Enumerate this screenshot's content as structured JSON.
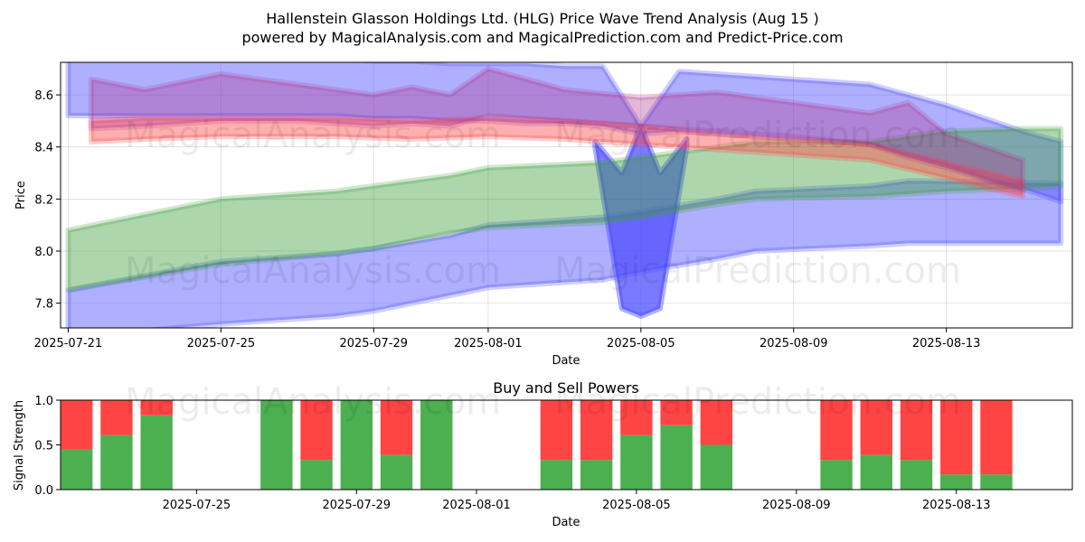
{
  "figure": {
    "title_line1": "Hallenstein Glasson Holdings Ltd. (HLG) Price Wave Trend Analysis (Aug 15 )",
    "title_line2": "powered by MagicalAnalysis.com and MagicalPrediction.com and Predict-Price.com",
    "watermark_left": "MagicalAnalysis.com",
    "watermark_right": "MagicalPrediction.com"
  },
  "colors": {
    "blue_band": "#4d4dff",
    "green_band": "#3c9e3c",
    "red_band": "#ff4d4d",
    "purple_band": "#b0308a",
    "buy": "#4caf50",
    "sell": "#ff4444"
  },
  "chart_data": [
    {
      "type": "area",
      "title": "",
      "xlabel": "Date",
      "ylabel": "Price",
      "x_ticks": [
        "2025-07-21",
        "2025-07-25",
        "2025-07-29",
        "2025-08-01",
        "2025-08-05",
        "2025-08-09",
        "2025-08-13"
      ],
      "y_ticks": [
        "7.8",
        "8.0",
        "8.2",
        "8.4",
        "8.6"
      ],
      "xlim": [
        "2025-07-20.8",
        "2025-08-16.3"
      ],
      "ylim": [
        7.705,
        8.725
      ],
      "grid": true,
      "series": [
        {
          "band": "blue-upper",
          "x": [
            "2025-07-21",
            "2025-07-25",
            "2025-07-28",
            "2025-07-29",
            "2025-07-30",
            "2025-07-31",
            "2025-08-01",
            "2025-08-02",
            "2025-08-03",
            "2025-08-04",
            "2025-08-05",
            "2025-08-06",
            "2025-08-07",
            "2025-08-08",
            "2025-08-10",
            "2025-08-11",
            "2025-08-12",
            "2025-08-13",
            "2025-08-14",
            "2025-08-15",
            "2025-08-16"
          ],
          "upper": [
            8.74,
            8.74,
            8.74,
            8.73,
            8.73,
            8.72,
            8.72,
            8.72,
            8.71,
            8.71,
            8.48,
            8.69,
            8.68,
            8.67,
            8.65,
            8.64,
            8.6,
            8.56,
            8.51,
            8.46,
            8.42
          ],
          "lower": [
            8.52,
            8.52,
            8.52,
            8.51,
            8.51,
            8.5,
            8.5,
            8.49,
            8.49,
            8.48,
            8.45,
            8.46,
            8.45,
            8.44,
            8.42,
            8.41,
            8.37,
            8.33,
            8.28,
            8.24,
            8.19
          ]
        },
        {
          "band": "blue-dip",
          "x": [
            "2025-08-03.8",
            "2025-08-04.5",
            "2025-08-05",
            "2025-08-05.5",
            "2025-08-06.2"
          ],
          "upper": [
            8.42,
            8.3,
            8.48,
            8.3,
            8.43
          ],
          "lower": [
            8.4,
            7.78,
            7.75,
            7.78,
            8.4
          ]
        },
        {
          "band": "blue-lower",
          "x": [
            "2025-07-21",
            "2025-07-25",
            "2025-07-28",
            "2025-07-29",
            "2025-07-31",
            "2025-08-01",
            "2025-08-04",
            "2025-08-05",
            "2025-08-07",
            "2025-08-08",
            "2025-08-11",
            "2025-08-12",
            "2025-08-16"
          ],
          "upper": [
            7.85,
            7.96,
            7.99,
            8.01,
            8.06,
            8.1,
            8.13,
            8.15,
            8.2,
            8.23,
            8.25,
            8.27,
            8.26
          ],
          "lower": [
            7.67,
            7.72,
            7.75,
            7.77,
            7.83,
            7.86,
            7.89,
            7.92,
            7.97,
            8.0,
            8.02,
            8.03,
            8.03
          ]
        },
        {
          "band": "green",
          "x": [
            "2025-07-21",
            "2025-07-25",
            "2025-07-28",
            "2025-07-29",
            "2025-07-31",
            "2025-08-01",
            "2025-08-04",
            "2025-08-05",
            "2025-08-07",
            "2025-08-08",
            "2025-08-11",
            "2025-08-12",
            "2025-08-13",
            "2025-08-15",
            "2025-08-16"
          ],
          "upper": [
            8.08,
            8.2,
            8.23,
            8.25,
            8.29,
            8.32,
            8.34,
            8.36,
            8.4,
            8.42,
            8.42,
            8.44,
            8.46,
            8.47,
            8.47
          ],
          "lower": [
            7.85,
            7.95,
            7.99,
            8.01,
            8.07,
            8.09,
            8.11,
            8.13,
            8.18,
            8.2,
            8.21,
            8.22,
            8.23,
            8.24,
            8.25
          ]
        },
        {
          "band": "red",
          "x": [
            "2025-07-21.6",
            "2025-07-23",
            "2025-07-25",
            "2025-07-28",
            "2025-07-30",
            "2025-08-01",
            "2025-08-03",
            "2025-08-05",
            "2025-08-07",
            "2025-08-09",
            "2025-08-11",
            "2025-08-13",
            "2025-08-15"
          ],
          "upper": [
            8.5,
            8.51,
            8.51,
            8.51,
            8.5,
            8.51,
            8.5,
            8.48,
            8.45,
            8.43,
            8.41,
            8.34,
            8.27
          ],
          "lower": [
            8.42,
            8.43,
            8.44,
            8.44,
            8.43,
            8.44,
            8.43,
            8.41,
            8.39,
            8.37,
            8.35,
            8.28,
            8.21
          ]
        },
        {
          "band": "purple",
          "x": [
            "2025-07-21.6",
            "2025-07-23",
            "2025-07-25",
            "2025-07-27",
            "2025-07-28",
            "2025-07-29",
            "2025-07-30",
            "2025-07-31",
            "2025-08-01",
            "2025-08-03",
            "2025-08-05",
            "2025-08-07",
            "2025-08-09",
            "2025-08-11",
            "2025-08-12",
            "2025-08-13",
            "2025-08-15"
          ],
          "upper": [
            8.66,
            8.62,
            8.68,
            8.64,
            8.62,
            8.6,
            8.63,
            8.6,
            8.7,
            8.62,
            8.59,
            8.61,
            8.57,
            8.53,
            8.57,
            8.45,
            8.35
          ],
          "lower": [
            8.47,
            8.48,
            8.5,
            8.5,
            8.49,
            8.48,
            8.49,
            8.48,
            8.52,
            8.5,
            8.48,
            8.46,
            8.44,
            8.41,
            8.36,
            8.32,
            8.23
          ]
        }
      ]
    },
    {
      "type": "bar",
      "title": "Buy and Sell Powers",
      "xlabel": "Date",
      "ylabel": "Signal Strength",
      "x_ticks": [
        "2025-07-25",
        "2025-07-29",
        "2025-08-01",
        "2025-08-05",
        "2025-08-09",
        "2025-08-13"
      ],
      "y_ticks": [
        "0.0",
        "0.5",
        "1.0"
      ],
      "xlim": [
        "2025-07-21.6",
        "2025-08-15.9"
      ],
      "ylim": [
        0,
        1
      ],
      "grid": false,
      "categories": [
        "2025-07-22",
        "2025-07-23",
        "2025-07-24",
        "2025-07-27",
        "2025-07-28",
        "2025-07-29",
        "2025-07-30",
        "2025-07-31",
        "2025-08-03",
        "2025-08-04",
        "2025-08-05",
        "2025-08-06",
        "2025-08-07",
        "2025-08-10",
        "2025-08-11",
        "2025-08-12",
        "2025-08-13",
        "2025-08-14"
      ],
      "series": [
        {
          "values": [
            0.45,
            0.61,
            0.83,
            1.0,
            0.33,
            1.0,
            0.39,
            1.0,
            0.33,
            0.33,
            0.61,
            0.72,
            0.5,
            0.33,
            0.39,
            0.33,
            0.17,
            0.17
          ]
        },
        {
          "values": [
            0.55,
            0.39,
            0.17,
            0.0,
            0.67,
            0.0,
            0.61,
            0.0,
            0.67,
            0.67,
            0.39,
            0.28,
            0.5,
            0.67,
            0.61,
            0.67,
            0.83,
            0.83
          ]
        }
      ]
    }
  ]
}
